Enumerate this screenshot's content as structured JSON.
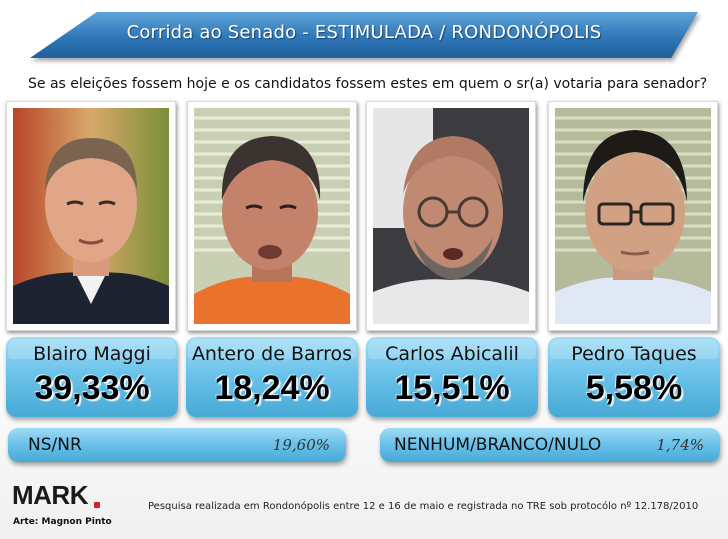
{
  "header": {
    "title": "Corrida ao Senado - ESTIMULADA / RONDONÓPOLIS",
    "question": "Se as eleições fossem hoje e os candidatos fossem estes em quem o sr(a) votaria para senador?"
  },
  "colors": {
    "banner": "#2f77b8",
    "result_box": "#6cc3ea",
    "logo_accent": "#d1242a"
  },
  "candidates": [
    {
      "name": "Blairo Maggi",
      "percent_label": "39,33%"
    },
    {
      "name": "Antero de Barros",
      "percent_label": "18,24%"
    },
    {
      "name": "Carlos Abicalil",
      "percent_label": "15,51%"
    },
    {
      "name": "Pedro Taques",
      "percent_label": "5,58%"
    }
  ],
  "extras": [
    {
      "label": "NS/NR",
      "value_label": "19,60%"
    },
    {
      "label": "NENHUM/BRANCO/NULO",
      "value_label": "1,74%"
    }
  ],
  "footer": {
    "logo": "MARK",
    "art_credit": "Arte: Magnon Pinto",
    "note": "Pesquisa realizada em Rondonópolis entre 12 e 16 de maio e registrada no TRE sob protocólo nº 12.178/2010"
  },
  "chart_data": {
    "type": "table",
    "title": "Corrida ao Senado - ESTIMULADA / RONDONÓPOLIS",
    "categories": [
      "Blairo Maggi",
      "Antero de Barros",
      "Carlos Abicalil",
      "Pedro Taques",
      "NS/NR",
      "NENHUM/BRANCO/NULO"
    ],
    "values": [
      39.33,
      18.24,
      15.51,
      5.58,
      19.6,
      1.74
    ],
    "unit": "%"
  }
}
